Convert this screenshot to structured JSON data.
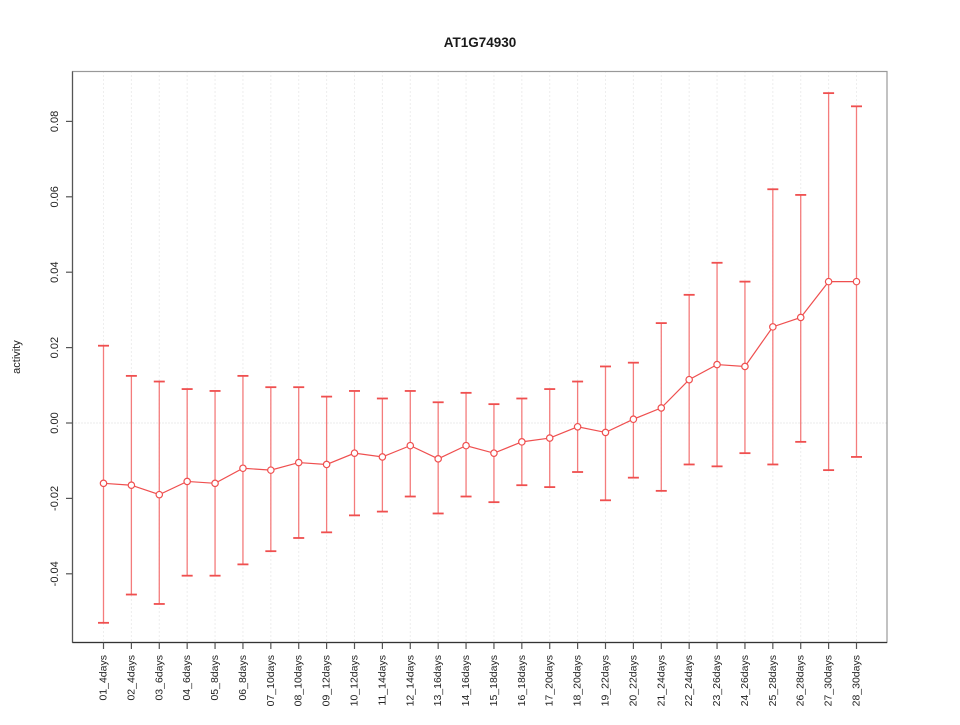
{
  "title": "AT1G74930",
  "axes": {
    "ylabel": "activity",
    "xlabel": ""
  },
  "colors": {
    "series": "#ef4f4f",
    "series_light": "#f47c7c",
    "grid": "#dcdcdc",
    "zero_line": "#d8d8d8",
    "axis": "#555555",
    "box": "#999999",
    "text": "#222222"
  },
  "chart_data": {
    "type": "line",
    "title": "AT1G74930",
    "xlabel": "",
    "ylabel": "activity",
    "grid": "vertical dotted gridlines at each category; dotted horizontal line at y=0",
    "legend_position": "none",
    "point_style": "open-circle with error bars (caps), connected by line segments",
    "ylim": [
      -0.058,
      0.093
    ],
    "yticks": [
      -0.04,
      -0.02,
      0,
      0.02,
      0.04,
      0.06,
      0.08
    ],
    "ytick_labels": [
      "-0.04",
      "-0.02",
      "0.00",
      "0.02",
      "0.04",
      "0.06",
      "0.08"
    ],
    "categories": [
      "01_4days",
      "02_4days",
      "03_6days",
      "04_6days",
      "05_8days",
      "06_8days",
      "07_10days",
      "08_10days",
      "09_12days",
      "10_12days",
      "11_14days",
      "12_14days",
      "13_16days",
      "14_16days",
      "15_18days",
      "16_18days",
      "17_20days",
      "18_20days",
      "19_22days",
      "20_22days",
      "21_24days",
      "22_24days",
      "23_26days",
      "24_26days",
      "25_28days",
      "26_28days",
      "27_30days",
      "28_30days"
    ],
    "series": [
      {
        "name": "activity",
        "values": [
          -0.016,
          -0.0165,
          -0.019,
          -0.0155,
          -0.016,
          -0.012,
          -0.0125,
          -0.0105,
          -0.011,
          -0.008,
          -0.009,
          -0.006,
          -0.0095,
          -0.006,
          -0.008,
          -0.005,
          -0.004,
          -0.001,
          -0.0025,
          0.001,
          0.004,
          0.0115,
          0.0155,
          0.015,
          0.0255,
          0.028,
          0.0375,
          0.0375
        ],
        "error_upper": [
          0.0205,
          0.0125,
          0.011,
          0.009,
          0.0085,
          0.0125,
          0.0095,
          0.0095,
          0.007,
          0.0085,
          0.0065,
          0.0085,
          0.0055,
          0.008,
          0.005,
          0.0065,
          0.009,
          0.011,
          0.015,
          0.016,
          0.0265,
          0.034,
          0.0425,
          0.0375,
          0.062,
          0.0605,
          0.0875,
          0.084
        ],
        "error_lower": [
          -0.053,
          -0.0455,
          -0.048,
          -0.0405,
          -0.0405,
          -0.0375,
          -0.034,
          -0.0305,
          -0.029,
          -0.0245,
          -0.0235,
          -0.0195,
          -0.024,
          -0.0195,
          -0.021,
          -0.0165,
          -0.017,
          -0.013,
          -0.0205,
          -0.0145,
          -0.018,
          -0.011,
          -0.0115,
          -0.008,
          -0.011,
          -0.005,
          -0.0125,
          -0.009
        ]
      }
    ]
  }
}
